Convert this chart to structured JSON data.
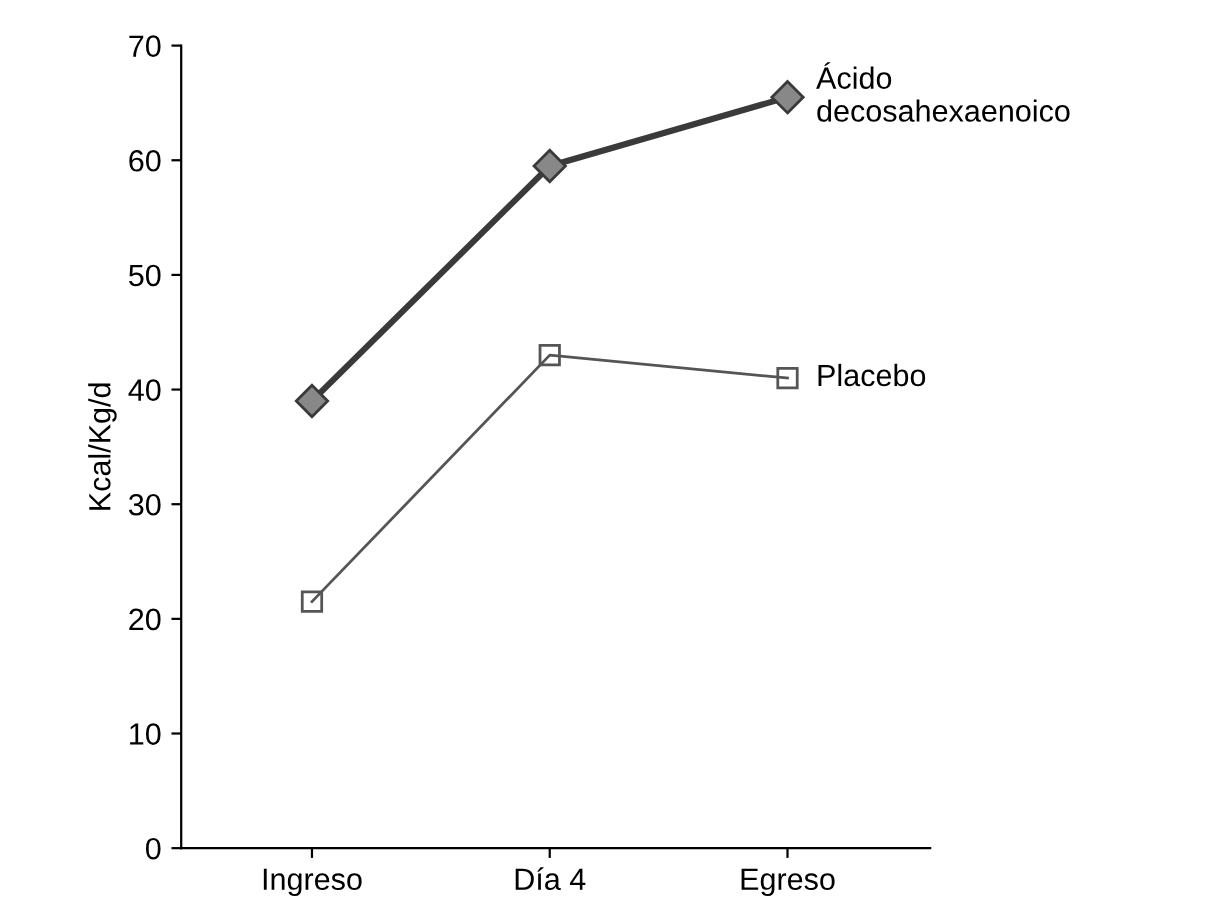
{
  "chart_data": {
    "type": "line",
    "ylabel": "Kcal/Kg/d",
    "categories": [
      "Ingreso",
      "Día 4",
      "Egreso"
    ],
    "ylim": [
      0,
      70
    ],
    "yticks": [
      0,
      10,
      20,
      30,
      40,
      50,
      60,
      70
    ],
    "grid": false,
    "legend": false,
    "series": [
      {
        "name": "Ácido\ndecosahexaenoico",
        "color": "#3a3a3a",
        "values": [
          39,
          59.5,
          65.5
        ],
        "marker": "diamond"
      },
      {
        "name": "Placebo",
        "color": "#555555",
        "values": [
          21.5,
          43,
          41
        ],
        "marker": "square"
      }
    ]
  }
}
